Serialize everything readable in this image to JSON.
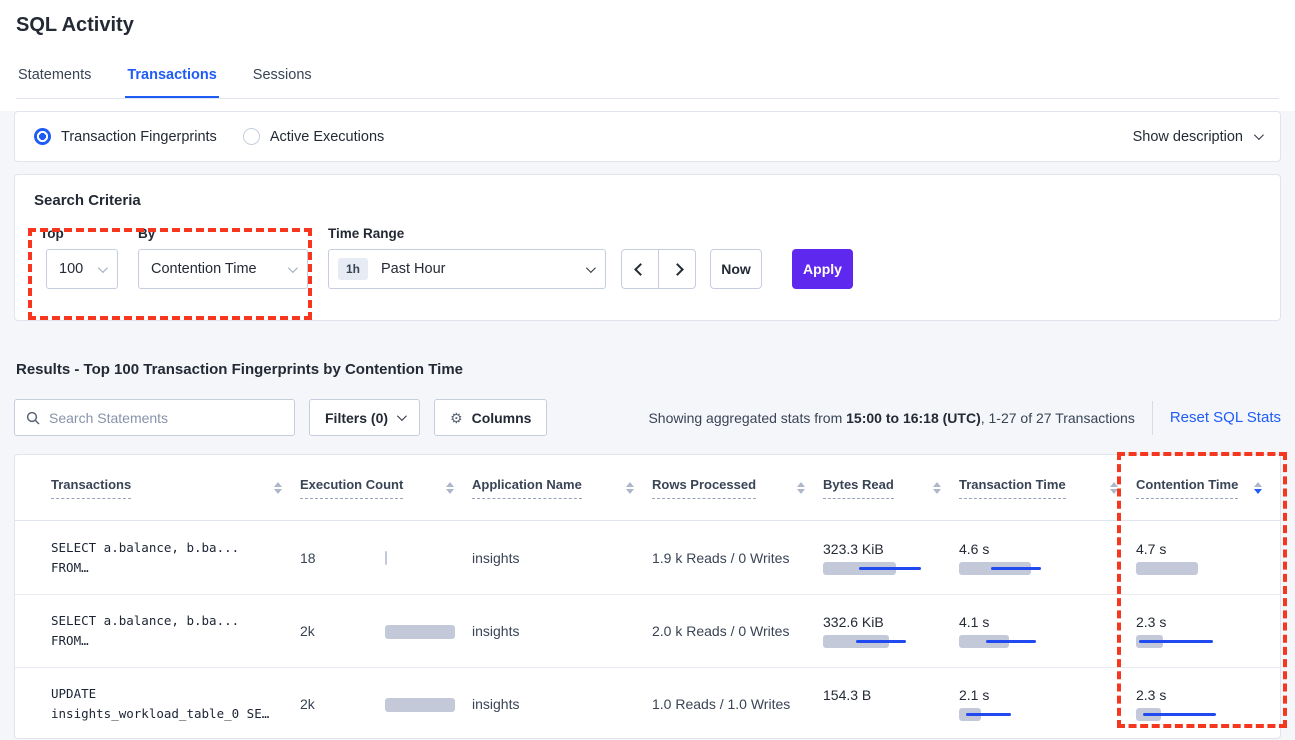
{
  "page": {
    "title": "SQL Activity"
  },
  "tabs": [
    {
      "label": "Statements",
      "active": false
    },
    {
      "label": "Transactions",
      "active": true
    },
    {
      "label": "Sessions",
      "active": false
    }
  ],
  "view_toggle": {
    "options": [
      {
        "label": "Transaction Fingerprints",
        "selected": true
      },
      {
        "label": "Active Executions",
        "selected": false
      }
    ],
    "show_description": "Show description"
  },
  "search_criteria": {
    "title": "Search Criteria",
    "top": {
      "label": "Top",
      "value": "100"
    },
    "by": {
      "label": "By",
      "value": "Contention Time"
    },
    "time_range": {
      "label": "Time Range",
      "badge": "1h",
      "value": "Past Hour"
    },
    "now_label": "Now",
    "apply_label": "Apply"
  },
  "results": {
    "heading": "Results - Top 100 Transaction Fingerprints by Contention Time",
    "search_placeholder": "Search Statements",
    "filters_label": "Filters (0)",
    "columns_label": "Columns",
    "stats_prefix": "Showing aggregated stats from ",
    "stats_bold": "15:00 to 16:18 (UTC)",
    "stats_suffix": ", 1-27 of 27 Transactions",
    "reset_label": "Reset SQL Stats"
  },
  "table": {
    "columns": [
      {
        "label": "Transactions",
        "sort": null
      },
      {
        "label": "Execution Count",
        "sort": null
      },
      {
        "label": "Application Name",
        "sort": null
      },
      {
        "label": "Rows Processed",
        "sort": null
      },
      {
        "label": "Bytes Read",
        "sort": null
      },
      {
        "label": "Transaction Time",
        "sort": null
      },
      {
        "label": "Contention Time",
        "sort": "desc"
      }
    ],
    "rows": [
      {
        "sql_line1": "SELECT a.balance, b.ba...",
        "sql_line2": "FROM…",
        "execution_count": "18",
        "application_name": "insights",
        "rows_processed": "1.9 k Reads / 0 Writes",
        "bytes_read": "323.3 KiB",
        "transaction_time": "4.6 s",
        "contention_time": "4.7 s",
        "bars": {
          "execution": {
            "bar": 2
          },
          "bytes": {
            "bar": 73,
            "line": [
              36,
              98
            ]
          },
          "transaction": {
            "bar": 72,
            "line": [
              32,
              82
            ]
          },
          "contention": {
            "bar": 62
          }
        }
      },
      {
        "sql_line1": "SELECT a.balance, b.ba...",
        "sql_line2": "FROM…",
        "execution_count": "2k",
        "application_name": "insights",
        "rows_processed": "2.0 k Reads / 0 Writes",
        "bytes_read": "332.6 KiB",
        "transaction_time": "4.1 s",
        "contention_time": "2.3 s",
        "bars": {
          "execution": {
            "bar": 70
          },
          "bytes": {
            "bar": 66,
            "line": [
              33,
              83
            ]
          },
          "transaction": {
            "bar": 50,
            "line": [
              27,
              77
            ]
          },
          "contention": {
            "bar": 27,
            "line": [
              3,
              77
            ]
          }
        }
      },
      {
        "sql_line1": "UPDATE",
        "sql_line2": "insights_workload_table_0 SE…",
        "execution_count": "2k",
        "application_name": "insights",
        "rows_processed": "1.0 Reads / 1.0 Writes",
        "bytes_read": "154.3 B",
        "transaction_time": "2.1 s",
        "contention_time": "2.3 s",
        "bars": {
          "execution": {
            "bar": 70
          },
          "bytes": null,
          "transaction": {
            "bar": 22,
            "line": [
              7,
              52
            ]
          },
          "contention": {
            "bar": 25,
            "line": [
              7,
              80
            ]
          }
        }
      }
    ]
  },
  "colors": {
    "accent": "#1f5cf6",
    "purple": "#5f28ee",
    "annotation_red": "#f5371f",
    "bar_gray": "#c4c9da",
    "bar_blue": "#2149f0"
  }
}
